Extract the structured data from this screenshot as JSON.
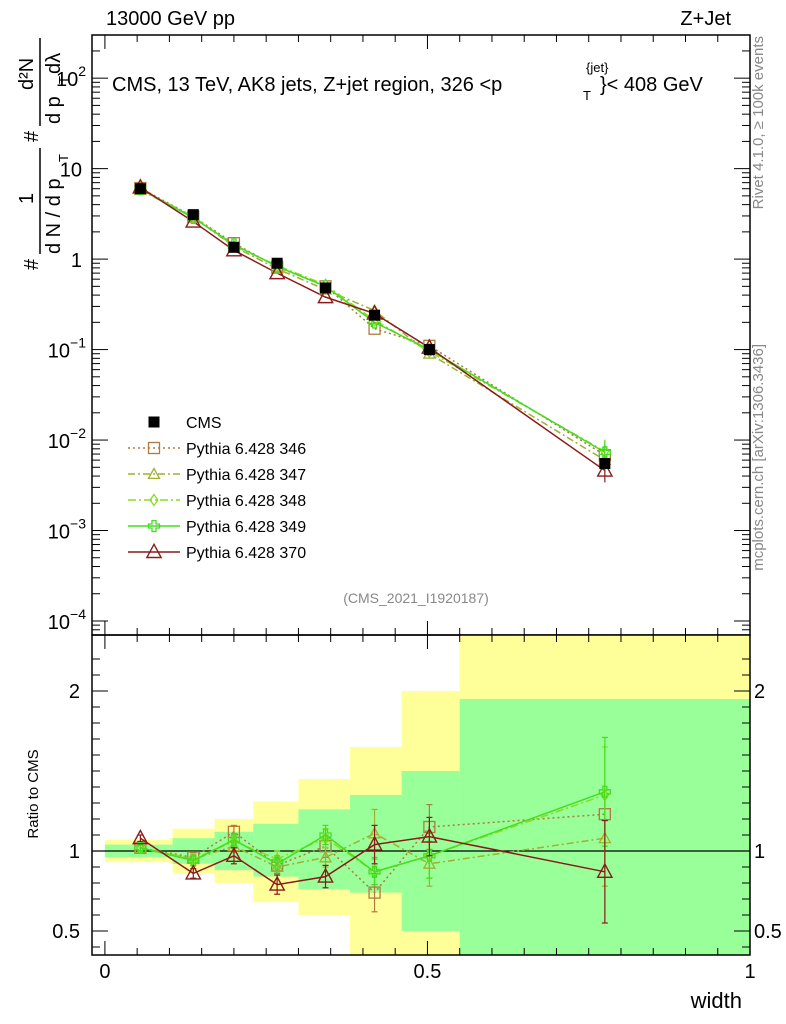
{
  "header": {
    "left": "13000 GeV pp",
    "right": "Z+Jet"
  },
  "side_labels": {
    "rivet": "Rivet 4.1.0, ≥ 100k events",
    "mcplots": "mcplots.cern.ch [arXiv:1306.3436]"
  },
  "chart_data": [
    {
      "type": "line",
      "panel": "main",
      "title": "CMS, 13 TeV, AK8 jets, Z+jet region, 326 <p_T^{jet}< 408 GeV",
      "title_parts": {
        "pre": "CMS, 13 TeV, AK8 jets, Z+jet region, 326 <p",
        "sup": "{jet}",
        "sub": "T",
        "post": "}< 408 GeV"
      },
      "ylabel": "1/N dN/dp_T d^2N/dp_T dλ",
      "ylabel_parts": {
        "num": "1",
        "hash": "#",
        "den": "d N / d p",
        "den_sub": "T",
        "num2": "d²N",
        "den2": "d p",
        "den2_sub": "T",
        "den2_post": " dλ"
      },
      "yscale": "log",
      "ylim": [
        7e-05,
        300
      ],
      "xlim": [
        -0.02,
        1.0
      ],
      "y_tick_labels": [
        {
          "v": 100,
          "base": "10",
          "exp": "2"
        },
        {
          "v": 10,
          "base": "10",
          "exp": ""
        },
        {
          "v": 1,
          "base": "1",
          "exp": ""
        },
        {
          "v": 0.1,
          "base": "10",
          "exp": "−1"
        },
        {
          "v": 0.01,
          "base": "10",
          "exp": "−2"
        },
        {
          "v": 0.001,
          "base": "10",
          "exp": "−3"
        },
        {
          "v": 0.0001,
          "base": "10",
          "exp": "−4"
        }
      ],
      "x": [
        0.055,
        0.137,
        0.2,
        0.267,
        0.342,
        0.418,
        0.503,
        0.775
      ],
      "data_series": {
        "name": "CMS",
        "values": [
          6.0,
          3.1,
          1.35,
          0.9,
          0.48,
          0.24,
          0.1,
          0.0055
        ]
      },
      "series": [
        {
          "name": "Pythia 6.428 346",
          "color": "#b07a40",
          "dash": "2,3",
          "marker": "square",
          "values": [
            6.1,
            2.95,
            1.5,
            0.82,
            0.5,
            0.17,
            0.11,
            0.0068
          ]
        },
        {
          "name": "Pythia 6.428 347",
          "color": "#a0b030",
          "dash": "7,3,2,3",
          "marker": "triangle",
          "values": [
            5.8,
            2.9,
            1.38,
            0.78,
            0.46,
            0.27,
            0.09,
            0.006
          ]
        },
        {
          "name": "Pythia 6.428 348",
          "color": "#88dd22",
          "dash": "8,3,2,3",
          "marker": "diamond",
          "values": [
            5.9,
            2.95,
            1.4,
            0.85,
            0.52,
            0.21,
            0.095,
            0.0075
          ]
        },
        {
          "name": "Pythia 6.428 349",
          "color": "#44dd22",
          "dash": "",
          "marker": "cross",
          "values": [
            5.95,
            2.85,
            1.45,
            0.83,
            0.5,
            0.2,
            0.1,
            0.0073
          ]
        },
        {
          "name": "Pythia 6.428 370",
          "color": "#8b1a1a",
          "dash": "",
          "marker": "triangle-open",
          "values": [
            6.2,
            2.6,
            1.25,
            0.7,
            0.38,
            0.25,
            0.105,
            0.0046
          ]
        }
      ],
      "annotation": "(CMS_2021_I1920187)"
    },
    {
      "type": "line",
      "panel": "ratio",
      "ylabel": "Ratio to CMS",
      "ylim": [
        0.35,
        2.35
      ],
      "xlim": [
        -0.02,
        1.0
      ],
      "xlabel": "width",
      "x_ticks": [
        0,
        0.5,
        1
      ],
      "x_tick_labels": [
        "0",
        "0.5",
        "1"
      ],
      "y_ticks": [
        0.5,
        1,
        2
      ],
      "y_tick_labels": [
        "0.5",
        "1",
        "2"
      ],
      "bin_edges": [
        0.0,
        0.1,
        0.105,
        0.17,
        0.23,
        0.3,
        0.38,
        0.46,
        0.55,
        1.0
      ],
      "bands": {
        "yellow": [
          [
            0.93,
            1.07
          ],
          [
            0.92,
            1.08
          ],
          [
            0.86,
            1.14
          ],
          [
            0.8,
            1.2
          ],
          [
            0.68,
            1.31
          ],
          [
            0.6,
            1.45
          ],
          [
            0.3,
            1.65
          ],
          [
            0.3,
            2.0
          ],
          [
            0.3,
            2.6
          ]
        ],
        "green": [
          [
            0.96,
            1.04
          ],
          [
            0.96,
            1.04
          ],
          [
            0.92,
            1.08
          ],
          [
            0.88,
            1.12
          ],
          [
            0.84,
            1.17
          ],
          [
            0.76,
            1.26
          ],
          [
            0.74,
            1.35
          ],
          [
            0.5,
            1.5
          ],
          [
            0.3,
            1.95
          ]
        ],
        "yellow_color": "#ffff99",
        "green_color": "#99ff99"
      },
      "x": [
        0.055,
        0.137,
        0.2,
        0.267,
        0.342,
        0.418,
        0.503,
        0.775
      ],
      "series": [
        {
          "name": "Pythia 6.428 346",
          "values": [
            1.02,
            0.96,
            1.12,
            0.91,
            1.03,
            0.74,
            1.15,
            1.23
          ],
          "err": [
            0.02,
            0.03,
            0.04,
            0.05,
            0.07,
            0.12,
            0.14,
            0.0
          ]
        },
        {
          "name": "Pythia 6.428 347",
          "values": [
            1.02,
            0.95,
            1.03,
            0.9,
            0.96,
            1.11,
            0.92,
            1.08
          ],
          "err": [
            0.02,
            0.03,
            0.04,
            0.05,
            0.06,
            0.15,
            0.14,
            0.3
          ]
        },
        {
          "name": "Pythia 6.428 348",
          "values": [
            1.02,
            0.95,
            1.06,
            0.95,
            1.08,
            0.87,
            0.97,
            1.35
          ],
          "err": [
            0.02,
            0.03,
            0.04,
            0.05,
            0.06,
            0.08,
            0.14,
            0.3
          ]
        },
        {
          "name": "Pythia 6.428 349",
          "values": [
            1.02,
            0.94,
            1.07,
            0.92,
            1.1,
            0.87,
            0.97,
            1.37
          ],
          "err": [
            0.02,
            0.03,
            0.04,
            0.05,
            0.06,
            0.08,
            0.14,
            0.34
          ]
        },
        {
          "name": "Pythia 6.428 370",
          "values": [
            1.08,
            0.86,
            0.97,
            0.79,
            0.84,
            1.04,
            1.09,
            0.87
          ],
          "err": [
            0.02,
            0.03,
            0.05,
            0.06,
            0.07,
            0.12,
            0.12,
            0.32
          ]
        }
      ]
    }
  ]
}
